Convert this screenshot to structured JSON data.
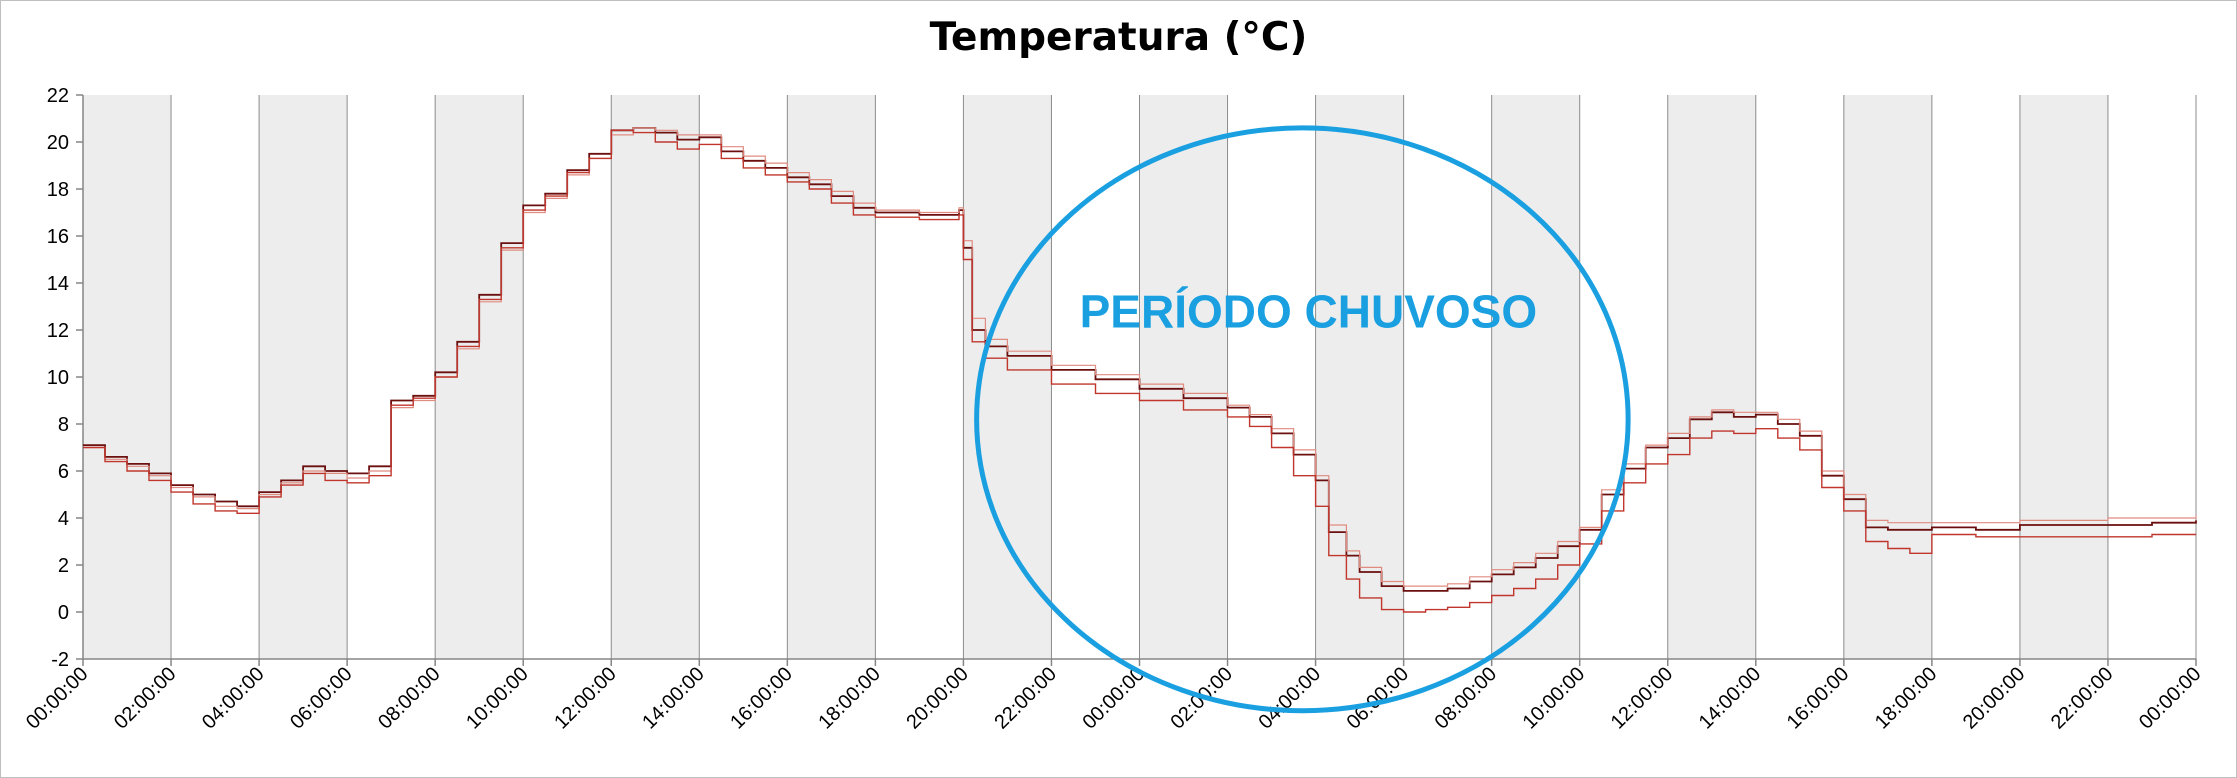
{
  "chart_data": {
    "type": "line",
    "title": "Temperatura (°C)",
    "xlabel": "",
    "ylabel": "",
    "ylim": [
      -2,
      22
    ],
    "y_ticks": [
      -2,
      0,
      2,
      4,
      6,
      8,
      10,
      12,
      14,
      16,
      18,
      20,
      22
    ],
    "x_range_hours": [
      0,
      48
    ],
    "x_ticks": [
      "00:00:00",
      "02:00:00",
      "04:00:00",
      "06:00:00",
      "08:00:00",
      "10:00:00",
      "12:00:00",
      "14:00:00",
      "16:00:00",
      "18:00:00",
      "20:00:00",
      "22:00:00",
      "00:00:00",
      "02:00:00",
      "04:00:00",
      "06:00:00",
      "08:00:00",
      "10:00:00",
      "12:00:00",
      "14:00:00",
      "16:00:00",
      "18:00:00",
      "20:00:00",
      "22:00:00",
      "00:00:00"
    ],
    "shaded_bands": [
      [
        0,
        2
      ],
      [
        4,
        6
      ],
      [
        8,
        10
      ],
      [
        12,
        14
      ],
      [
        16,
        18
      ],
      [
        20,
        22
      ],
      [
        24,
        26
      ],
      [
        28,
        30
      ],
      [
        32,
        34
      ],
      [
        36,
        38
      ],
      [
        40,
        42
      ],
      [
        44,
        46
      ]
    ],
    "grid": true,
    "series": [
      {
        "color": "#6b0f0f",
        "x": [
          0,
          0.5,
          1,
          1.5,
          2,
          2.5,
          3,
          3.5,
          4,
          4.5,
          5,
          5.5,
          6,
          6.5,
          7,
          7.5,
          8,
          8.5,
          9,
          9.5,
          10,
          10.5,
          11,
          11.5,
          12,
          12.5,
          13,
          13.5,
          14,
          14.5,
          15,
          15.5,
          16,
          16.5,
          17,
          17.5,
          18,
          18.5,
          19,
          19.5,
          19.9,
          20,
          20.2,
          20.5,
          21,
          22,
          23,
          24,
          25,
          26,
          26.5,
          27,
          27.5,
          28,
          28.3,
          28.7,
          29,
          29.5,
          30,
          30.5,
          31,
          31.5,
          32,
          32.5,
          33,
          33.5,
          34,
          34.5,
          35,
          35.5,
          36,
          36.5,
          37,
          37.5,
          38,
          38.5,
          39,
          39.5,
          40,
          40.5,
          41,
          41.5,
          42,
          43,
          44,
          45,
          46,
          47,
          48
        ],
        "y": [
          7.1,
          6.6,
          6.3,
          5.9,
          5.4,
          5.0,
          4.7,
          4.5,
          5.1,
          5.6,
          6.2,
          6.0,
          5.9,
          6.2,
          9.0,
          9.2,
          10.2,
          11.5,
          13.5,
          15.7,
          17.3,
          17.8,
          18.8,
          19.5,
          20.5,
          20.6,
          20.4,
          20.1,
          20.2,
          19.6,
          19.2,
          18.9,
          18.5,
          18.2,
          17.7,
          17.2,
          17.0,
          17.0,
          16.9,
          16.9,
          17.1,
          15.5,
          12.0,
          11.3,
          10.9,
          10.3,
          9.9,
          9.5,
          9.1,
          8.7,
          8.3,
          7.6,
          6.7,
          5.6,
          3.4,
          2.4,
          1.7,
          1.1,
          0.9,
          0.9,
          1.0,
          1.3,
          1.6,
          1.9,
          2.3,
          2.8,
          3.5,
          5.0,
          6.1,
          7.0,
          7.4,
          8.2,
          8.5,
          8.3,
          8.4,
          8.0,
          7.5,
          5.8,
          4.8,
          3.6,
          3.5,
          3.5,
          3.6,
          3.5,
          3.7,
          3.7,
          3.7,
          3.8,
          3.9
        ]
      },
      {
        "color": "#e08b80",
        "x": [
          0,
          0.5,
          1,
          1.5,
          2,
          2.5,
          3,
          3.5,
          4,
          4.5,
          5,
          5.5,
          6,
          6.5,
          7,
          7.5,
          8,
          8.5,
          9,
          9.5,
          10,
          10.5,
          11,
          11.5,
          12,
          12.5,
          13,
          13.5,
          14,
          14.5,
          15,
          15.5,
          16,
          16.5,
          17,
          17.5,
          18,
          18.5,
          19,
          19.5,
          19.9,
          20,
          20.2,
          20.5,
          21,
          22,
          23,
          24,
          25,
          26,
          26.5,
          27,
          27.5,
          28,
          28.3,
          28.7,
          29,
          29.5,
          30,
          30.5,
          31,
          31.5,
          32,
          32.5,
          33,
          33.5,
          34,
          34.5,
          35,
          35.5,
          36,
          36.5,
          37,
          37.5,
          38,
          38.5,
          39,
          39.5,
          40,
          40.5,
          41,
          41.5,
          42,
          43,
          44,
          45,
          46,
          47,
          48
        ],
        "y": [
          7.0,
          6.5,
          6.2,
          5.8,
          5.3,
          4.9,
          4.5,
          4.4,
          5.0,
          5.5,
          6.0,
          5.9,
          5.7,
          6.0,
          8.7,
          9.0,
          10.0,
          11.2,
          13.2,
          15.4,
          17.0,
          17.6,
          18.6,
          19.3,
          20.3,
          20.6,
          20.5,
          20.3,
          20.3,
          19.8,
          19.4,
          19.1,
          18.7,
          18.4,
          17.9,
          17.4,
          17.1,
          17.1,
          17.0,
          17.0,
          17.2,
          15.8,
          12.5,
          11.6,
          11.1,
          10.5,
          10.1,
          9.7,
          9.3,
          8.8,
          8.4,
          7.8,
          6.9,
          5.8,
          3.7,
          2.6,
          1.9,
          1.3,
          1.1,
          1.1,
          1.2,
          1.5,
          1.8,
          2.1,
          2.5,
          3.0,
          3.6,
          5.2,
          6.3,
          7.1,
          7.6,
          8.3,
          8.6,
          8.5,
          8.5,
          8.2,
          7.7,
          6.0,
          5.0,
          3.9,
          3.8,
          3.8,
          3.8,
          3.8,
          3.9,
          3.9,
          4.0,
          4.0,
          4.1
        ]
      },
      {
        "color": "#c0362c",
        "x": [
          0,
          0.5,
          1,
          1.5,
          2,
          2.5,
          3,
          3.5,
          4,
          4.5,
          5,
          5.5,
          6,
          6.5,
          7,
          7.5,
          8,
          8.5,
          9,
          9.5,
          10,
          10.5,
          11,
          11.5,
          12,
          12.5,
          13,
          13.5,
          14,
          14.5,
          15,
          15.5,
          16,
          16.5,
          17,
          17.5,
          18,
          18.5,
          19,
          19.5,
          19.9,
          20,
          20.2,
          20.5,
          21,
          22,
          23,
          24,
          25,
          26,
          26.5,
          27,
          27.5,
          28,
          28.3,
          28.7,
          29,
          29.5,
          30,
          30.5,
          31,
          31.5,
          32,
          32.5,
          33,
          33.5,
          34,
          34.5,
          35,
          35.5,
          36,
          36.5,
          37,
          37.5,
          38,
          38.5,
          39,
          39.5,
          40,
          40.5,
          41,
          41.5,
          42,
          43,
          44,
          45,
          46,
          47,
          48
        ],
        "y": [
          7.0,
          6.4,
          6.0,
          5.6,
          5.1,
          4.6,
          4.3,
          4.2,
          4.9,
          5.4,
          5.9,
          5.6,
          5.5,
          5.8,
          8.8,
          9.1,
          10.0,
          11.3,
          13.3,
          15.5,
          17.1,
          17.7,
          18.7,
          19.3,
          20.5,
          20.4,
          20.0,
          19.7,
          19.9,
          19.3,
          18.9,
          18.6,
          18.3,
          18.0,
          17.4,
          16.9,
          16.8,
          16.8,
          16.7,
          16.7,
          16.9,
          15.0,
          11.5,
          10.8,
          10.3,
          9.7,
          9.3,
          9.0,
          8.6,
          8.3,
          7.9,
          7.0,
          5.8,
          4.5,
          2.4,
          1.4,
          0.6,
          0.1,
          0.0,
          0.1,
          0.2,
          0.4,
          0.7,
          1.0,
          1.4,
          2.0,
          2.9,
          4.3,
          5.5,
          6.3,
          6.7,
          7.4,
          7.7,
          7.6,
          7.8,
          7.4,
          6.9,
          5.3,
          4.3,
          3.0,
          2.7,
          2.5,
          3.3,
          3.2,
          3.2,
          3.2,
          3.2,
          3.3,
          3.3
        ]
      }
    ],
    "annotations": [
      {
        "text": "PERÍODO CHUVOSO",
        "color": "#1aa0e0",
        "shape": "ellipse",
        "center": [
          27.7,
          8.2
        ],
        "radius_x_hours": 7.4,
        "radius_y_degrees": 12.4
      }
    ]
  }
}
